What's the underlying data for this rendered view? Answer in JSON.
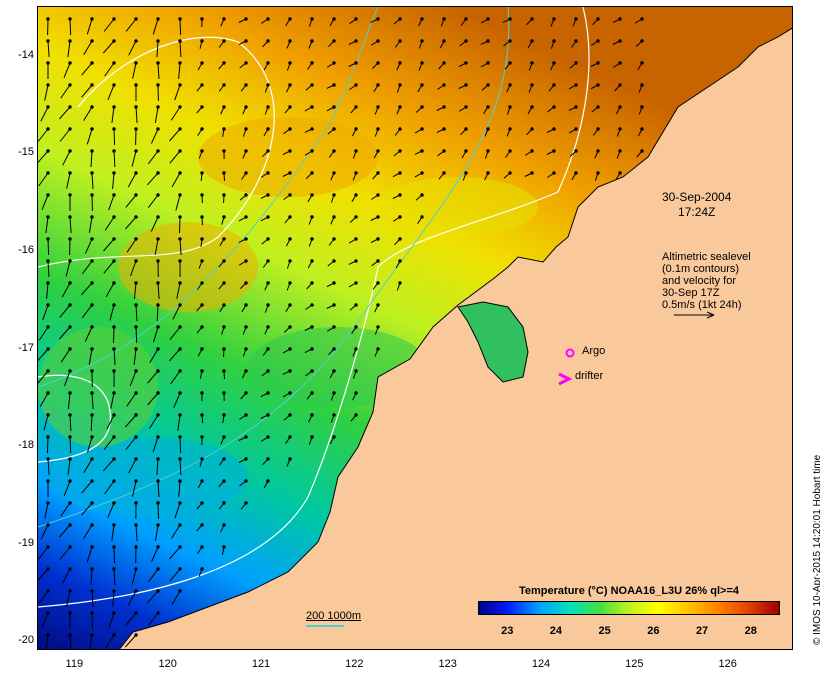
{
  "map": {
    "lon_range": [
      118.6,
      126.7
    ],
    "lat_range": [
      -20.1,
      -13.5
    ],
    "lon_ticks": [
      "119",
      "120",
      "121",
      "122",
      "123",
      "124",
      "125",
      "126"
    ],
    "lat_ticks": [
      "-14",
      "-15",
      "-16",
      "-17",
      "-18",
      "-19",
      "-20"
    ],
    "colors": {
      "land": "#f9c89b",
      "contour_sealevel": "#ffffff",
      "isobath": "#4fd0d0",
      "argo": "#ff00ff",
      "drifter": "#ff00ff",
      "arrow": "#000000"
    }
  },
  "annotations": {
    "timestamp_date": "30-Sep-2004",
    "timestamp_time": "17:24Z",
    "altimetry_line1": "Altimetric sealevel",
    "altimetry_line2": "(0.1m contours)",
    "altimetry_line3": "and velocity for",
    "altimetry_line4": "30-Sep 17Z",
    "altimetry_line5": "0.5m/s (1kt 24h)",
    "argo_label": "Argo",
    "drifter_label": "drifter",
    "isobath_label": "200  1000m",
    "credit": "© IMOS 10-Apr-2015 14:20:01 Hobart time"
  },
  "colorbar": {
    "title": "Temperature (°C) NOAA16_L3U 26% ql>=4",
    "ticks": [
      "23",
      "24",
      "25",
      "26",
      "27",
      "28"
    ],
    "range": [
      22.4,
      28.6
    ],
    "colors": [
      "#00008c",
      "#0020ff",
      "#00a0ff",
      "#00e0c0",
      "#40e040",
      "#c0f020",
      "#ffff00",
      "#ffc000",
      "#ff8000",
      "#e04000",
      "#a00000"
    ]
  }
}
